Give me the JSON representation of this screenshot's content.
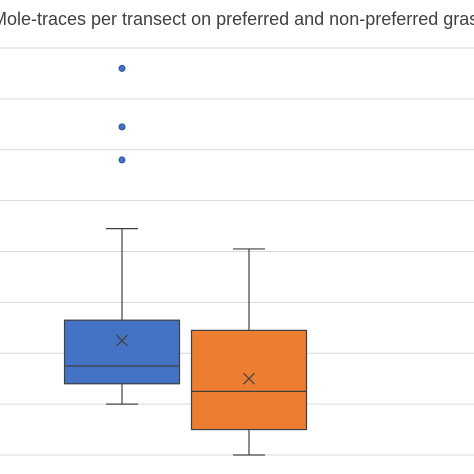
{
  "chart_data": {
    "type": "box",
    "title": "Mole-traces per transect on preferred and non-preferred grasslands",
    "xlabel": "",
    "ylabel": "",
    "grid": true,
    "legend": "none",
    "series": [
      {
        "color": "#4472C4",
        "whisker_low": 1.0,
        "q1": 1.4,
        "median": 1.75,
        "q3": 2.65,
        "whisker_high": 4.45,
        "mean": 2.25,
        "outliers": [
          5.8,
          6.45,
          7.6
        ]
      },
      {
        "color": "#ED7D31",
        "whisker_low": 0.0,
        "q1": 0.5,
        "median": 1.25,
        "q3": 2.45,
        "whisker_high": 4.05,
        "mean": 1.5,
        "outliers": []
      }
    ],
    "ylim": [
      0,
      8
    ]
  }
}
